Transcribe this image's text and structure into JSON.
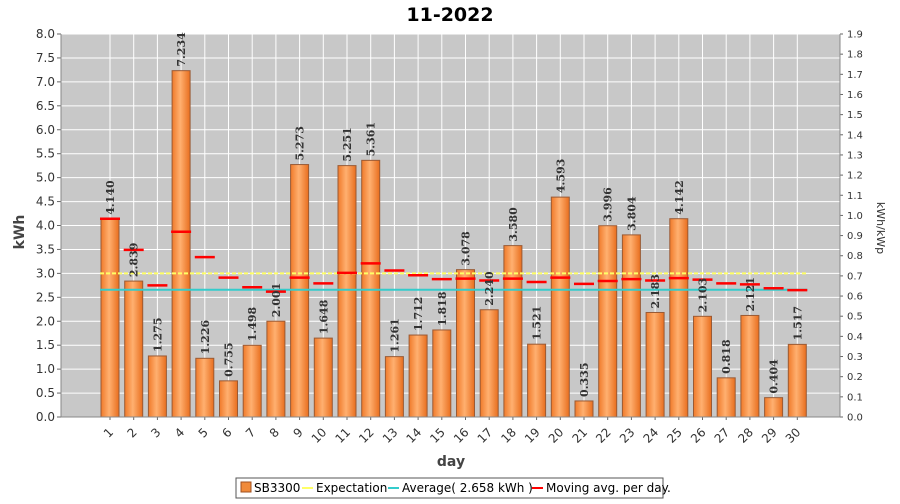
{
  "chart_data": {
    "type": "bar",
    "title": "11-2022",
    "xlabel": "day",
    "ylabel": "kWh",
    "ylabel_right": "kWh/kWp",
    "ylim": [
      0,
      8.0
    ],
    "ylim_right": [
      0,
      1.9
    ],
    "yticks": [
      "0.0",
      "0.5",
      "1.0",
      "1.5",
      "2.0",
      "2.5",
      "3.0",
      "3.5",
      "4.0",
      "4.5",
      "5.0",
      "5.5",
      "6.0",
      "6.5",
      "7.0",
      "7.5",
      "8.0"
    ],
    "yticks_right": [
      "0.0",
      "0.1",
      "0.2",
      "0.3",
      "0.4",
      "0.5",
      "0.6",
      "0.7",
      "0.8",
      "0.9",
      "1.0",
      "1.1",
      "1.2",
      "1.3",
      "1.4",
      "1.5",
      "1.6",
      "1.7",
      "1.8",
      "1.9"
    ],
    "categories": [
      "1",
      "2",
      "3",
      "4",
      "5",
      "6",
      "7",
      "8",
      "9",
      "10",
      "11",
      "12",
      "13",
      "14",
      "15",
      "16",
      "17",
      "18",
      "19",
      "20",
      "21",
      "22",
      "23",
      "24",
      "25",
      "26",
      "27",
      "28",
      "29",
      "30"
    ],
    "series": [
      {
        "name": "SB3300",
        "values": [
          4.14,
          2.839,
          1.275,
          7.234,
          1.226,
          0.755,
          1.498,
          2.001,
          5.273,
          1.648,
          5.251,
          5.361,
          1.261,
          1.712,
          1.818,
          3.078,
          2.24,
          3.58,
          1.521,
          4.593,
          0.335,
          3.996,
          3.804,
          2.183,
          4.142,
          2.103,
          0.818,
          2.121,
          0.404,
          1.517
        ],
        "labels": [
          "4.140",
          "2.839",
          "1.275",
          "7.234",
          "1.226",
          "0.755",
          "1.498",
          "2.001",
          "5.273",
          "1.648",
          "5.251",
          "5.361",
          "1.261",
          "1.712",
          "1.818",
          "3.078",
          "2.240",
          "3.580",
          "1.521",
          "4.593",
          "0.335",
          "3.996",
          "3.804",
          "2.183",
          "4.142",
          "2.103",
          "0.818",
          "2.121",
          "0.404",
          "1.517"
        ]
      },
      {
        "name": "Expectation",
        "value": 3.0
      },
      {
        "name": "Average( 2.658 kWh )",
        "value": 2.658
      },
      {
        "name": "Moving avg. per day.",
        "values": [
          4.14,
          3.49,
          2.75,
          3.87,
          3.34,
          2.91,
          2.71,
          2.62,
          2.91,
          2.79,
          3.01,
          3.21,
          3.06,
          2.96,
          2.88,
          2.89,
          2.85,
          2.89,
          2.82,
          2.91,
          2.78,
          2.84,
          2.88,
          2.85,
          2.9,
          2.87,
          2.79,
          2.77,
          2.69,
          2.65
        ]
      }
    ],
    "legend": {
      "position": "bottom",
      "items": [
        {
          "label": "SB3300",
          "color": "#f08a3a",
          "kind": "box"
        },
        {
          "label": "Expectation",
          "color": "#ffff66",
          "kind": "line"
        },
        {
          "label": "Average( 2.658 kWh )",
          "color": "#33cccc",
          "kind": "line"
        },
        {
          "label": "Moving avg. per day.",
          "color": "#ff0000",
          "kind": "line"
        }
      ]
    },
    "colors": {
      "plot_bg": "#c8c8c8",
      "bar": "#f08a3a",
      "bar_light": "#ffc080",
      "grid": "#ffffff",
      "expectation": "#ffff66",
      "average": "#33cccc",
      "moving_avg": "#ff0000"
    }
  }
}
